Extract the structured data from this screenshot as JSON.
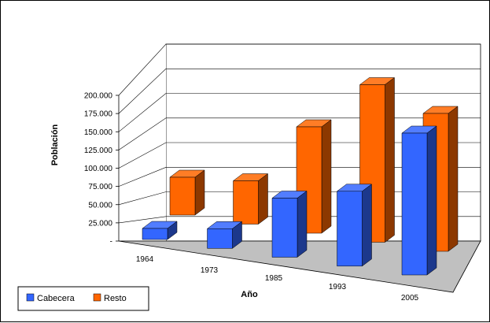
{
  "chart_data": {
    "type": "bar",
    "title": "",
    "xlabel": "Año",
    "ylabel": "Población",
    "categories": [
      "1964",
      "1973",
      "1985",
      "1993",
      "2005"
    ],
    "series": [
      {
        "name": "Cabecera",
        "values": [
          14000,
          25000,
          75000,
          95000,
          180000
        ]
      },
      {
        "name": "Resto",
        "values": [
          48000,
          55000,
          135000,
          200000,
          175000
        ]
      }
    ],
    "ylim": [
      0,
      200000
    ],
    "yticks": [
      "-",
      "25.000",
      "50.000",
      "75.000",
      "100.000",
      "125.000",
      "150.000",
      "175.000",
      "200.000"
    ],
    "grid": true,
    "legend": "bottom-left",
    "colors": {
      "Cabecera": "#3366ff",
      "Resto": "#ff6600",
      "floor": "#c0c0c0"
    }
  }
}
